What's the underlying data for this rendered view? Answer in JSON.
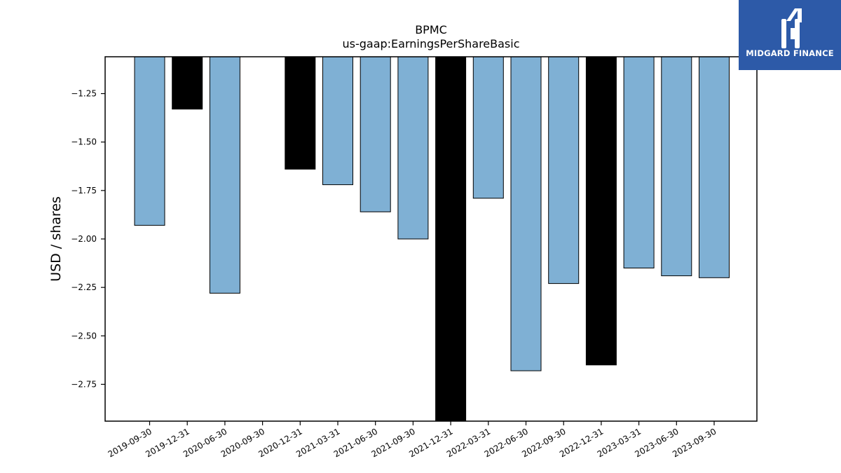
{
  "chart_data": {
    "type": "bar",
    "title": "BPMC",
    "subtitle": "us-gaap:EarningsPerShareBasic",
    "ylabel": "USD / shares",
    "xlabel": "",
    "ylim": [
      -2.94,
      -1.06
    ],
    "yticks": [
      -1.25,
      -1.5,
      -1.75,
      -2.0,
      -2.25,
      -2.5,
      -2.75
    ],
    "ytick_labels": [
      "−1.25",
      "−1.50",
      "−1.75",
      "−2.00",
      "−2.25",
      "−2.50",
      "−2.75"
    ],
    "categories": [
      "2019-09-30",
      "2019-12-31",
      "2020-06-30",
      "2020-09-30",
      "2020-12-31",
      "2021-03-31",
      "2021-06-30",
      "2021-09-30",
      "2021-12-31",
      "2022-03-31",
      "2022-06-30",
      "2022-09-30",
      "2022-12-31",
      "2023-03-31",
      "2023-06-30",
      "2023-09-30"
    ],
    "values": [
      -1.93,
      -1.33,
      -2.28,
      null,
      -1.64,
      -1.72,
      -1.86,
      -2.0,
      -3.03,
      -1.79,
      -2.68,
      -2.23,
      -2.65,
      -2.15,
      -2.19,
      -2.2
    ],
    "bar_colors": [
      "#7fb0d4",
      "#000000",
      "#7fb0d4",
      null,
      "#000000",
      "#7fb0d4",
      "#7fb0d4",
      "#7fb0d4",
      "#000000",
      "#7fb0d4",
      "#7fb0d4",
      "#7fb0d4",
      "#000000",
      "#7fb0d4",
      "#7fb0d4",
      "#7fb0d4"
    ],
    "grid": false
  },
  "logo": {
    "text": "MIDGARD FINANCE",
    "bg_color": "#2d5aa8"
  }
}
